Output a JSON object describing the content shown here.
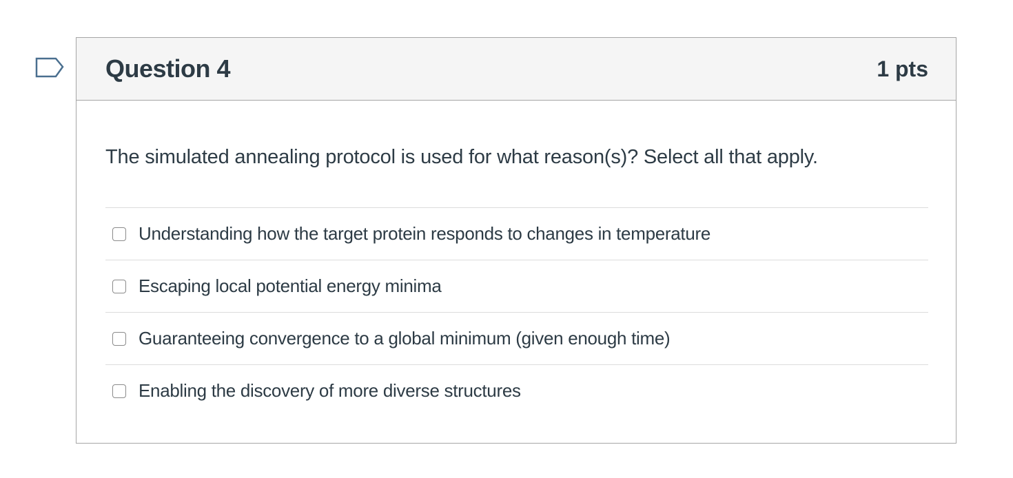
{
  "question": {
    "title": "Question 4",
    "points": "1 pts",
    "text": "The simulated annealing protocol is used for what reason(s)? Select all that apply.",
    "answers": [
      {
        "label": "Understanding how the target protein responds to changes in temperature",
        "checked": false
      },
      {
        "label": "Escaping local potential energy minima",
        "checked": false
      },
      {
        "label": "Guaranteeing convergence to a global minimum (given enough time)",
        "checked": false
      },
      {
        "label": "Enabling the discovery of more diverse structures",
        "checked": false
      }
    ]
  },
  "colors": {
    "text": "#2d3b45",
    "header_bg": "#f5f5f5",
    "border": "#a5a5a5",
    "flag_stroke": "#4a6f8f"
  },
  "icons": {
    "flag": "flag-question-icon"
  }
}
